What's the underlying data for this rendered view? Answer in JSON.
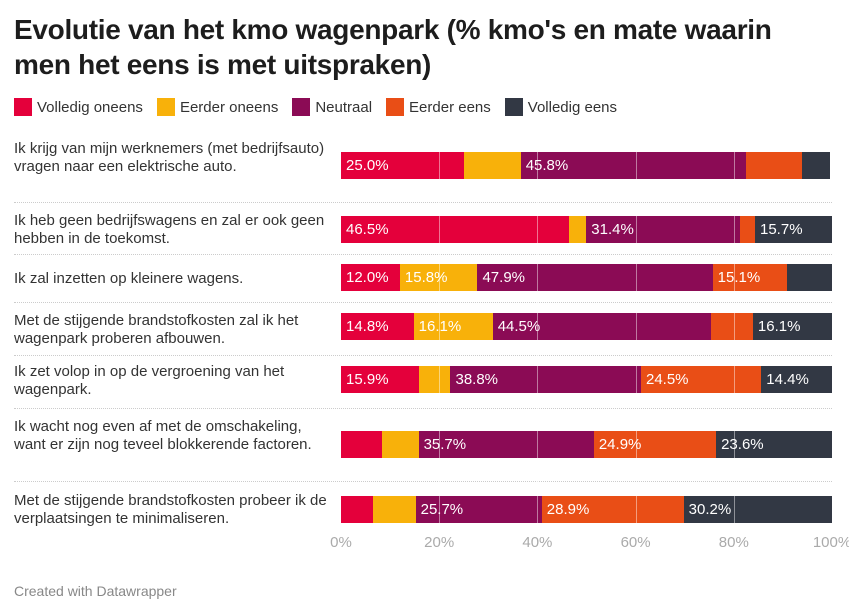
{
  "title": "Evolutie van het kmo wagenpark (% kmo's en mate waarin men het eens is met uitspraken)",
  "footer": "Created with Datawrapper",
  "chart_data": {
    "type": "bar",
    "orientation": "horizontal-stacked",
    "title": "Evolutie van het kmo wagenpark (% kmo's en mate waarin men het eens is met uitspraken)",
    "xlim": [
      0,
      100
    ],
    "ticks": [
      "0%",
      "20%",
      "40%",
      "60%",
      "80%",
      "100%"
    ],
    "legend_position": "top",
    "categories": [
      "Ik krijg van mijn werknemers (met bedrijfsauto) vragen naar een elektrische auto.",
      "Ik heb geen bedrijfswagens en zal er ook geen hebben in de toekomst.",
      "Ik zal inzetten op kleinere wagens.",
      "Met de stijgende brandstofkosten zal ik het wagenpark proberen afbouwen.",
      "Ik zet volop in op de vergroening van het wagenpark.",
      "Ik wacht nog even af met de omschakeling, want er zijn nog teveel blokkerende factoren.",
      "Met de stijgende brandstofkosten probeer ik de verplaatsingen te minimaliseren."
    ],
    "series": [
      {
        "name": "Volledig oneens",
        "color": "#e4003b",
        "values": [
          25.0,
          46.5,
          12.0,
          14.8,
          15.9,
          8.3,
          6.5
        ],
        "labels": [
          "25.0%",
          "46.5%",
          "12.0%",
          "14.8%",
          "15.9%",
          "",
          ""
        ]
      },
      {
        "name": "Eerder oneens",
        "color": "#f8b10a",
        "values": [
          11.6,
          3.5,
          15.8,
          16.1,
          6.4,
          7.5,
          8.7
        ],
        "labels": [
          "",
          "",
          "15.8%",
          "16.1%",
          "",
          "",
          ""
        ]
      },
      {
        "name": "Neutraal",
        "color": "#8b0b55",
        "values": [
          45.8,
          31.4,
          47.9,
          44.5,
          38.8,
          35.7,
          25.7
        ],
        "labels": [
          "45.8%",
          "31.4%",
          "47.9%",
          "44.5%",
          "38.8%",
          "35.7%",
          "25.7%"
        ]
      },
      {
        "name": "Eerder eens",
        "color": "#e94e16",
        "values": [
          11.4,
          3.0,
          15.1,
          8.5,
          24.5,
          24.9,
          28.9
        ],
        "labels": [
          "",
          "",
          "15.1%",
          "",
          "24.5%",
          "24.9%",
          "28.9%"
        ]
      },
      {
        "name": "Volledig eens",
        "color": "#323844",
        "values": [
          5.7,
          15.7,
          9.2,
          16.1,
          14.4,
          23.6,
          30.2
        ],
        "labels": [
          "",
          "15.7%",
          "",
          "16.1%",
          "14.4%",
          "23.6%",
          "30.2%"
        ]
      }
    ]
  }
}
